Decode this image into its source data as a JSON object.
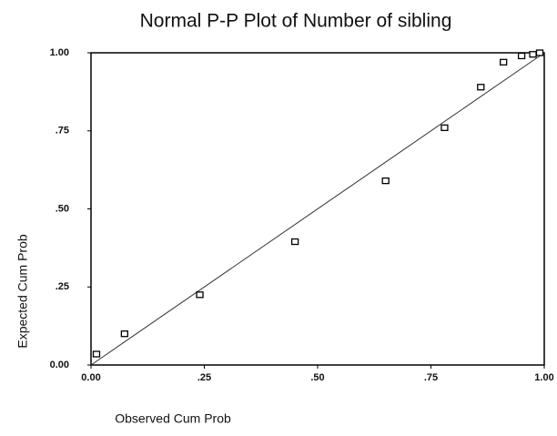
{
  "chart_data": {
    "type": "scatter",
    "title": "Normal P-P Plot of Number of sibling",
    "xlabel": "Observed Cum Prob",
    "ylabel": "Expected Cum Prob",
    "x": [
      0.012,
      0.074,
      0.24,
      0.45,
      0.65,
      0.78,
      0.86,
      0.91,
      0.95,
      0.975,
      0.99
    ],
    "y": [
      0.035,
      0.1,
      0.225,
      0.395,
      0.59,
      0.76,
      0.89,
      0.97,
      0.99,
      0.995,
      1.0
    ],
    "color": "#000000",
    "xlim": [
      0,
      1
    ],
    "ylim": [
      0,
      1
    ],
    "xticks": [
      {
        "value": 0,
        "label": "0.00"
      },
      {
        "value": 0.25,
        "label": ".25"
      },
      {
        "value": 0.5,
        "label": ".50"
      },
      {
        "value": 0.75,
        "label": ".75"
      },
      {
        "value": 1,
        "label": "1.00"
      }
    ],
    "yticks": [
      {
        "value": 0,
        "label": "0.00"
      },
      {
        "value": 0.25,
        "label": ".25"
      },
      {
        "value": 0.5,
        "label": ".50"
      },
      {
        "value": 0.75,
        "label": ".75"
      },
      {
        "value": 1,
        "label": "1.00"
      }
    ]
  }
}
